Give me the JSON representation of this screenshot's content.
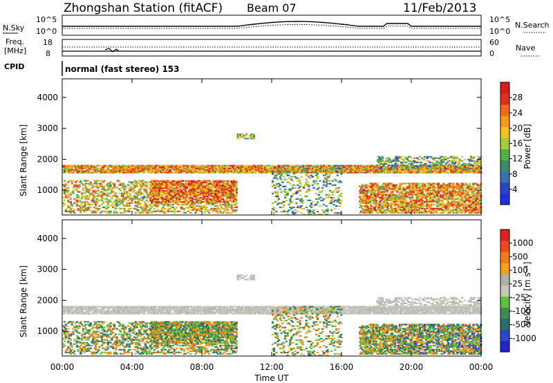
{
  "header": {
    "station": "Zhongshan Station (fitACF)",
    "beam": "Beam 07",
    "date": "11/Feb/2013"
  },
  "noise_panel": {
    "left_label": "N.Sky",
    "left_ticks": [
      "10^5",
      "10^0"
    ],
    "right_ticks": [
      "10^5",
      "10^0"
    ],
    "right_label": "N.Search"
  },
  "freq_panel": {
    "left_label_1": "Freq.",
    "left_label_2": "[MHz]",
    "left_ticks": [
      "18",
      "8"
    ],
    "right_ticks": [
      "60",
      "0"
    ],
    "right_label": "Nave"
  },
  "cpid": {
    "label": "CPID",
    "mode": "normal (fast stereo) 153"
  },
  "colors": {
    "power_scale": [
      "#1f2fe0",
      "#2a46c8",
      "#3a6fb0",
      "#3c8b6a",
      "#52b04a",
      "#a6cc3c",
      "#f3c51c",
      "#f39a1c",
      "#f36a1a",
      "#e0321a",
      "#d81c1c"
    ],
    "velocity_scale": [
      "#2323c8",
      "#2a48c8",
      "#2e6e6a",
      "#3c8b50",
      "#5cc23a",
      "#c8c8c0",
      "#b0b0a8",
      "#f3a01a",
      "#f37a1a",
      "#f0481a",
      "#e0201a"
    ]
  },
  "chart_data": [
    {
      "type": "heatmap",
      "name": "power",
      "xlabel": "Time UT",
      "ylabel": "Slant Range [km]",
      "x_ticks": [
        "00:00",
        "04:00",
        "08:00",
        "12:00",
        "16:00",
        "20:00",
        "00:00"
      ],
      "xlim": [
        "00:00",
        "24:00"
      ],
      "y_ticks": [
        1000,
        2000,
        3000,
        4000
      ],
      "ylim": [
        200,
        4600
      ],
      "colorbar_label": "Power [dB]",
      "colorbar_ticks": [
        4,
        8,
        12,
        16,
        20,
        24,
        28
      ],
      "colorbar_range": [
        0,
        30
      ]
    },
    {
      "type": "heatmap",
      "name": "velocity",
      "xlabel": "Time UT",
      "ylabel": "Slant Range [km]",
      "x_ticks": [
        "00:00",
        "04:00",
        "08:00",
        "12:00",
        "16:00",
        "20:00",
        "00:00"
      ],
      "xlim": [
        "00:00",
        "24:00"
      ],
      "y_ticks": [
        1000,
        2000,
        3000,
        4000
      ],
      "ylim": [
        200,
        4600
      ],
      "colorbar_label": "Velocity [m s⁻¹]",
      "colorbar_ticks": [
        "1000",
        "500",
        "100",
        "25",
        "-25",
        "-100",
        "-500",
        "-1000"
      ]
    }
  ]
}
